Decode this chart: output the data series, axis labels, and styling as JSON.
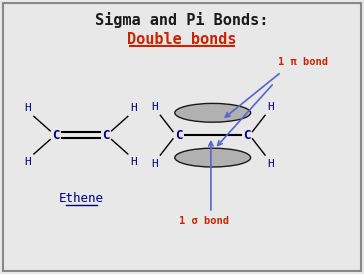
{
  "title_line1": "Sigma and Pi Bonds:",
  "title_line2": "Double bonds",
  "title_color": "#1a1a1a",
  "subtitle_color": "#cc2200",
  "background_color": "#e8e8e8",
  "border_color": "#888888",
  "atom_color": "#000080",
  "bond_color": "#000000",
  "arrow_color": "#5566cc",
  "pi_label": "1 π bond",
  "sigma_label": "1 σ bond",
  "ethene_label": "Ethene",
  "label_color": "#cc2200",
  "lobe_color": "#aaaaaa"
}
